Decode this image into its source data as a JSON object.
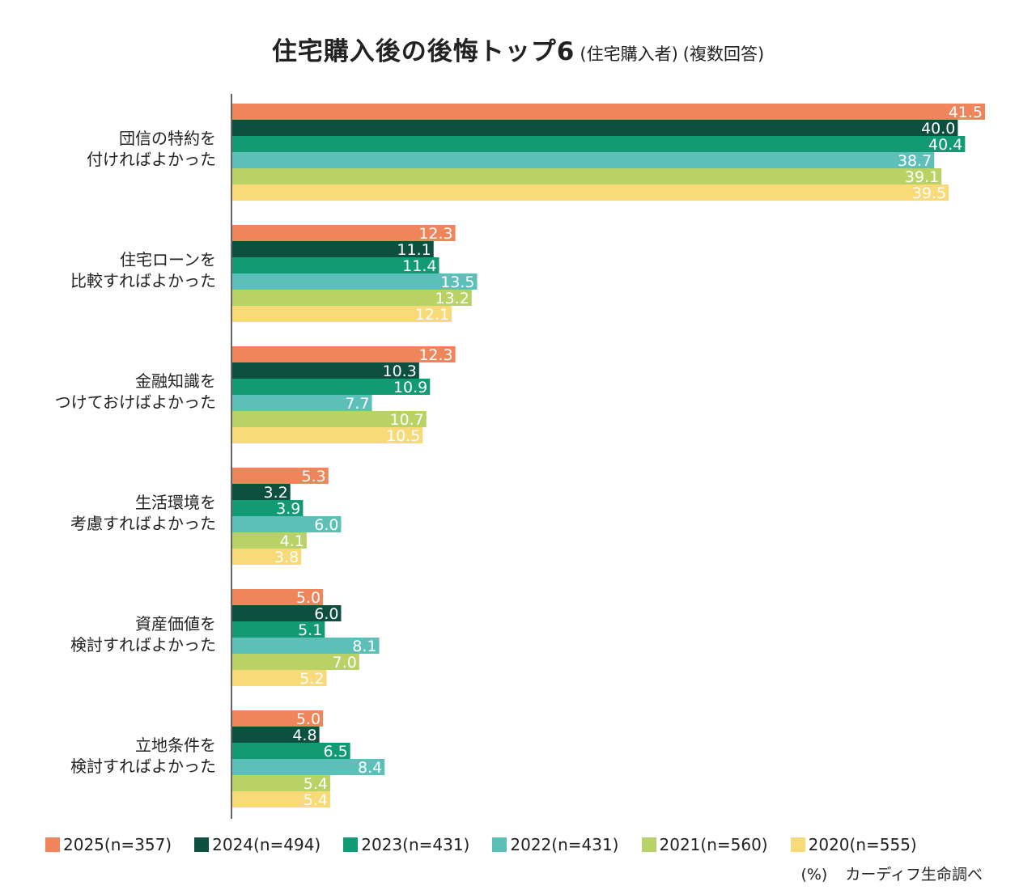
{
  "chart_data": {
    "type": "bar",
    "orientation": "horizontal",
    "title": "住宅購入後の後悔トップ6",
    "subtitle_1": "(住宅購入者)",
    "subtitle_2": "(複数回答)",
    "unit": "(%)",
    "source": "カーディフ生命調べ",
    "categories": [
      [
        "団信の特約を",
        "付ければよかった"
      ],
      [
        "住宅ローンを",
        "比較すればよかった"
      ],
      [
        "金融知識を",
        "つけておけばよかった"
      ],
      [
        "生活環境を",
        "考慮すればよかった"
      ],
      [
        "資産価値を",
        "検討すればよかった"
      ],
      [
        "立地条件を",
        "検討すればよかった"
      ]
    ],
    "series": [
      {
        "name": "2025(n=357)",
        "color": "#f0855c",
        "values": [
          41.5,
          12.3,
          12.3,
          5.3,
          5.0,
          5.0
        ]
      },
      {
        "name": "2024(n=494)",
        "color": "#0d5040",
        "values": [
          40.0,
          11.1,
          10.3,
          3.2,
          6.0,
          4.8
        ]
      },
      {
        "name": "2023(n=431)",
        "color": "#119a74",
        "values": [
          40.4,
          11.4,
          10.9,
          3.9,
          5.1,
          6.5
        ]
      },
      {
        "name": "2022(n=431)",
        "color": "#5cc0b8",
        "values": [
          38.7,
          13.5,
          7.7,
          6.0,
          8.1,
          8.4
        ]
      },
      {
        "name": "2021(n=560)",
        "color": "#b9d266",
        "values": [
          39.1,
          13.2,
          10.7,
          4.1,
          7.0,
          5.4
        ]
      },
      {
        "name": "2020(n=555)",
        "color": "#f9da78",
        "values": [
          39.5,
          12.1,
          10.5,
          3.8,
          5.2,
          5.4
        ]
      }
    ],
    "xlim": [
      0,
      41.5
    ],
    "grid": false,
    "legend_position": "bottom"
  }
}
